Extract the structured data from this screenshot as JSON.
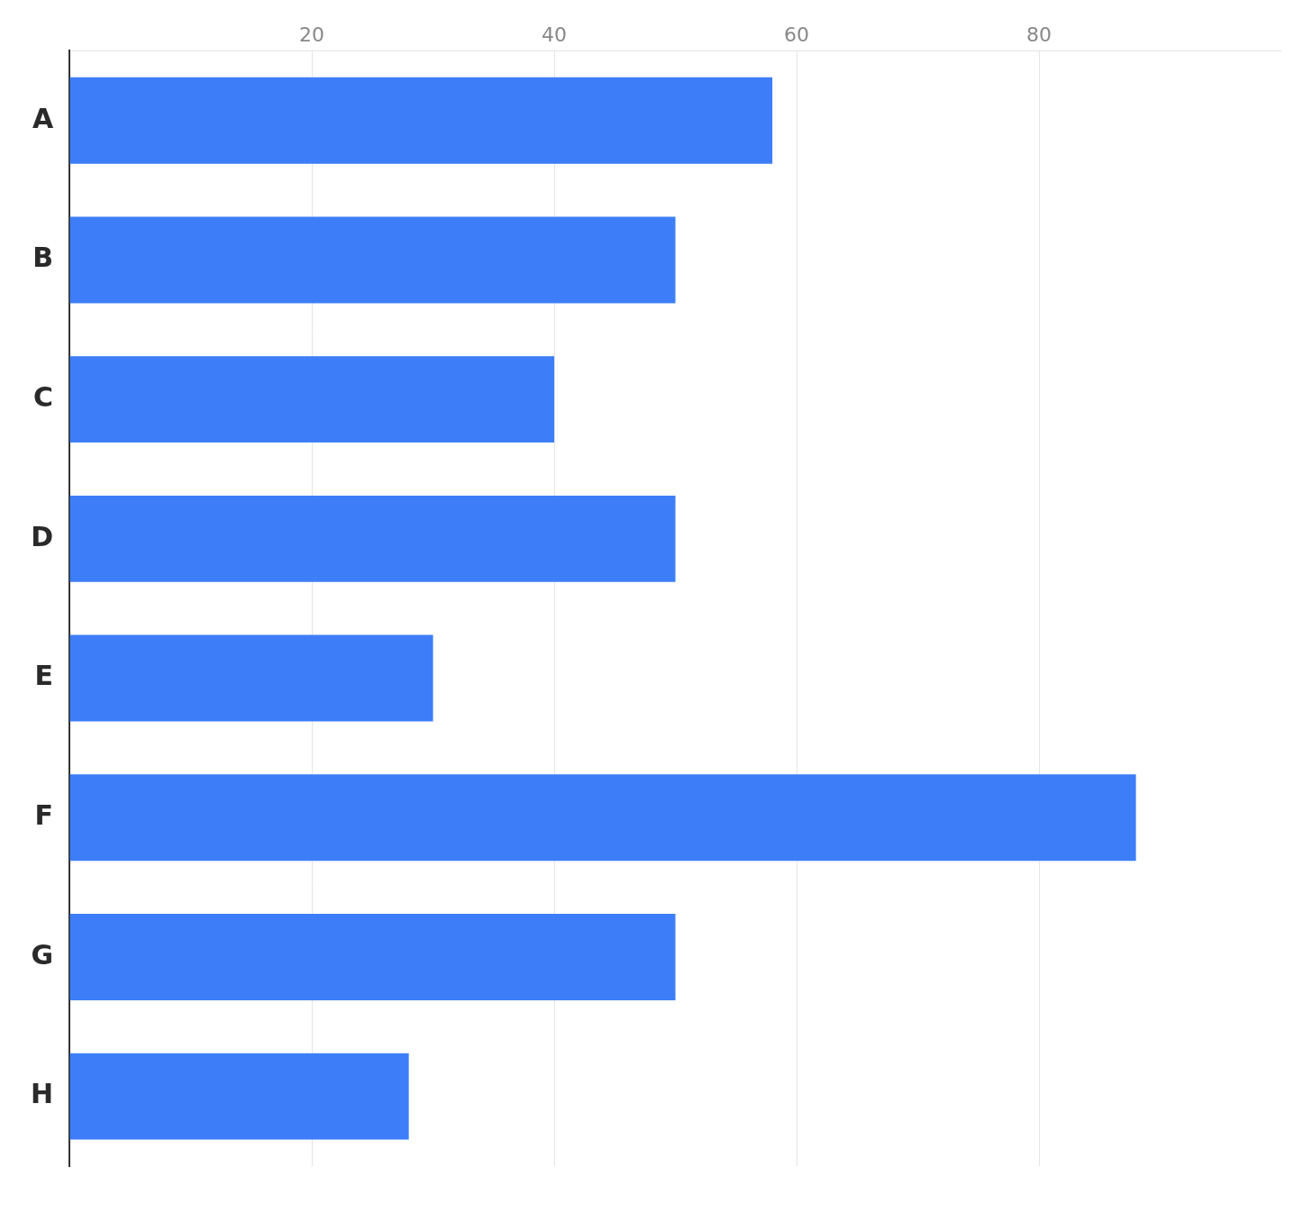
{
  "chart_data": {
    "type": "bar",
    "orientation": "horizontal",
    "categories": [
      "A",
      "B",
      "C",
      "D",
      "E",
      "F",
      "G",
      "H"
    ],
    "values": [
      58,
      50,
      40,
      50,
      30,
      88,
      50,
      28
    ],
    "color": "#3d7ef8",
    "xlim": [
      0,
      100
    ],
    "xticks": [
      {
        "value": 0,
        "label": ""
      },
      20,
      40,
      60,
      80
    ],
    "grid": true
  }
}
